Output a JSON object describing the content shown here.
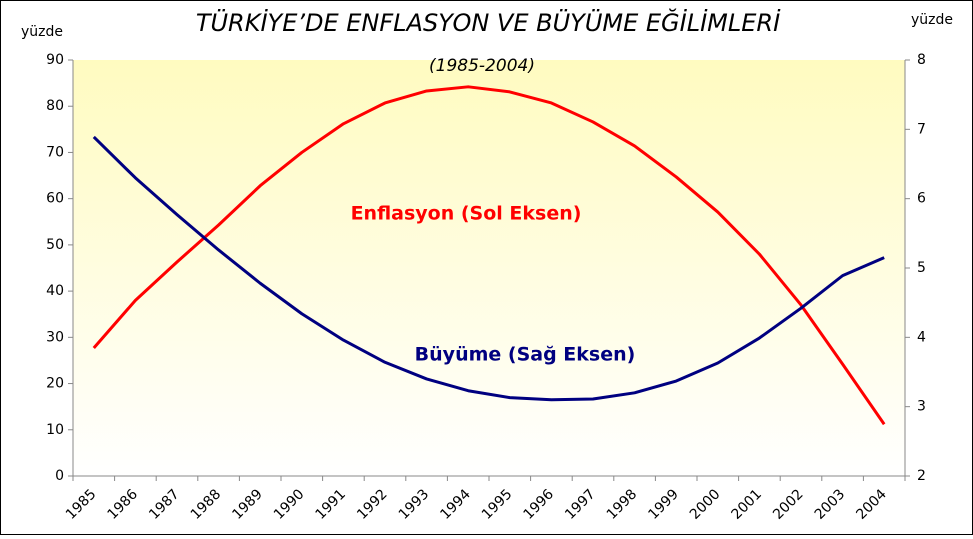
{
  "chart_data": {
    "type": "line",
    "title": "TÜRKİYE’DE ENFLASYON VE BÜYÜME EĞİLİMLERİ",
    "subtitle": "(1985-2004)",
    "ylabel": "yüzde",
    "y2label": "yüzde",
    "categories": [
      "1985",
      "1986",
      "1987",
      "1988",
      "1989",
      "1990",
      "1991",
      "1992",
      "1993",
      "1994",
      "1995",
      "1996",
      "1997",
      "1998",
      "1999",
      "2000",
      "2001",
      "2002",
      "2003",
      "2004"
    ],
    "series": [
      {
        "name": "Enflasyon (Sol Eksen)",
        "color": "#ff0000",
        "axis": "y",
        "values": [
          27.7,
          38,
          46.3,
          54.3,
          62.8,
          70,
          76.2,
          80.7,
          83.3,
          84.2,
          83.1,
          80.7,
          76.6,
          71.4,
          64.7,
          57.1,
          48,
          37,
          24.2,
          11.2
        ]
      },
      {
        "name": "Büyüme (Sağ Eksen)",
        "color": "#000080",
        "axis": "y2",
        "values": [
          6.89,
          6.3,
          5.77,
          5.26,
          4.78,
          4.34,
          3.96,
          3.64,
          3.4,
          3.23,
          3.13,
          3.1,
          3.11,
          3.2,
          3.37,
          3.63,
          3.99,
          4.42,
          4.89,
          5.15
        ]
      }
    ],
    "ylim": [
      0,
      90
    ],
    "yticks": [
      0,
      10,
      20,
      30,
      40,
      50,
      60,
      70,
      80,
      90
    ],
    "y2lim": [
      2,
      8
    ],
    "y2ticks": [
      2,
      3,
      4,
      5,
      6,
      7,
      8
    ]
  }
}
